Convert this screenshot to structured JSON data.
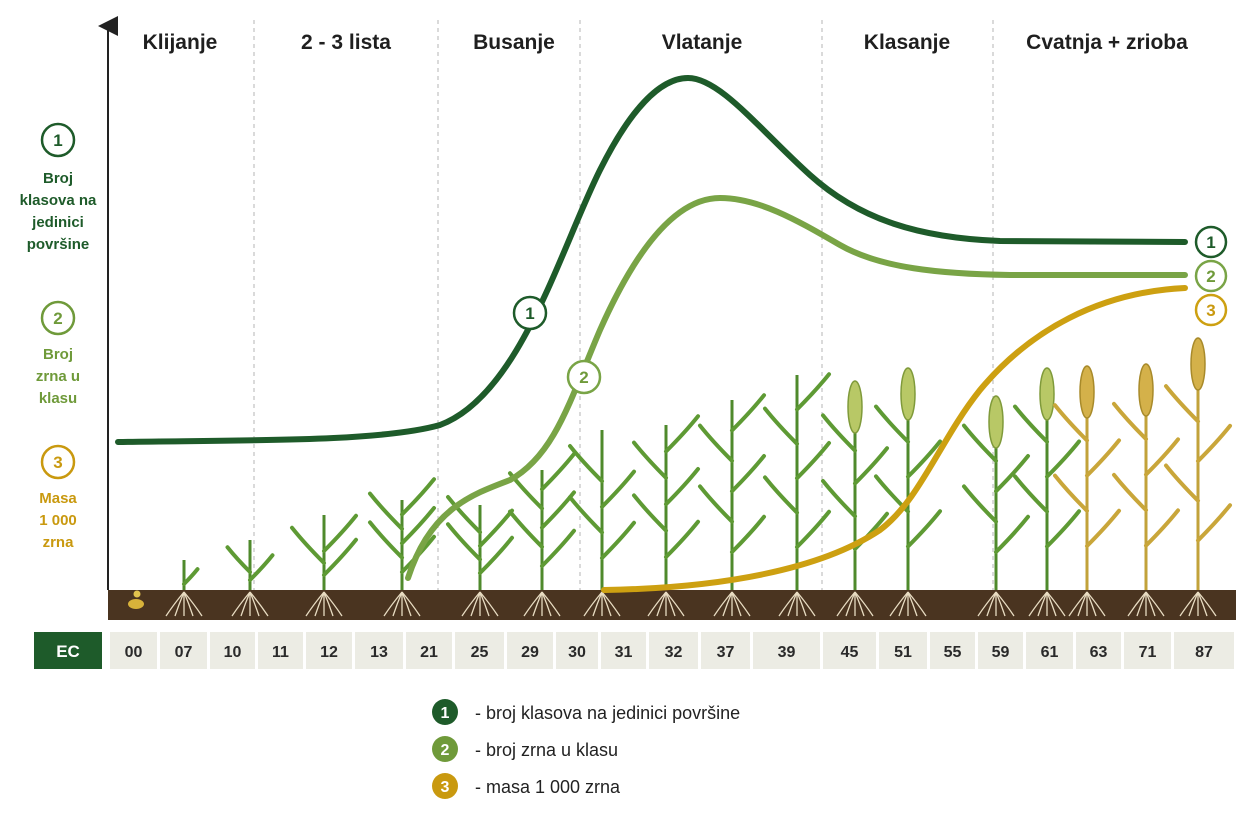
{
  "stages": [
    {
      "label": "Klijanje"
    },
    {
      "label": "2 - 3 lista"
    },
    {
      "label": "Busanje"
    },
    {
      "label": "Vlatanje"
    },
    {
      "label": "Klasanje"
    },
    {
      "label": "Cvatnja + zrioba"
    }
  ],
  "axis_items": [
    {
      "number": "1",
      "lines": [
        "Broj",
        "klasova na",
        "jedinici",
        "površine"
      ],
      "color": "#1e5b2a"
    },
    {
      "number": "2",
      "lines": [
        "Broj",
        "zrna u",
        "klasu"
      ],
      "color": "#6f9a3a"
    },
    {
      "number": "3",
      "lines": [
        "Masa",
        "1 000",
        "zrna"
      ],
      "color": "#c9990f"
    }
  ],
  "curves": [
    {
      "number": "1",
      "color": "#1e5b2a"
    },
    {
      "number": "2",
      "color": "#79a446"
    },
    {
      "number": "3",
      "color": "#cda011"
    }
  ],
  "ec": {
    "label": "EC",
    "codes": [
      "00",
      "07",
      "10",
      "11",
      "12",
      "13",
      "21",
      "25",
      "29",
      "30",
      "31",
      "32",
      "37",
      "39",
      "45",
      "51",
      "55",
      "59",
      "61",
      "63",
      "71",
      "87"
    ]
  },
  "legend": [
    {
      "number": "1",
      "text": "- broj klasova na jedinici površine",
      "color": "#1e5b2a"
    },
    {
      "number": "2",
      "text": "- broj zrna u klasu",
      "color": "#6f9a3a"
    },
    {
      "number": "3",
      "text": "- masa 1 000 zrna",
      "color": "#c9990f"
    }
  ],
  "colors": {
    "soil": "#4a3420",
    "ec_box": "#1e5b2a",
    "ec_cell": "#ecece4",
    "leaf_green": "#5e9a34",
    "leaf_ripe": "#c9a63a"
  }
}
